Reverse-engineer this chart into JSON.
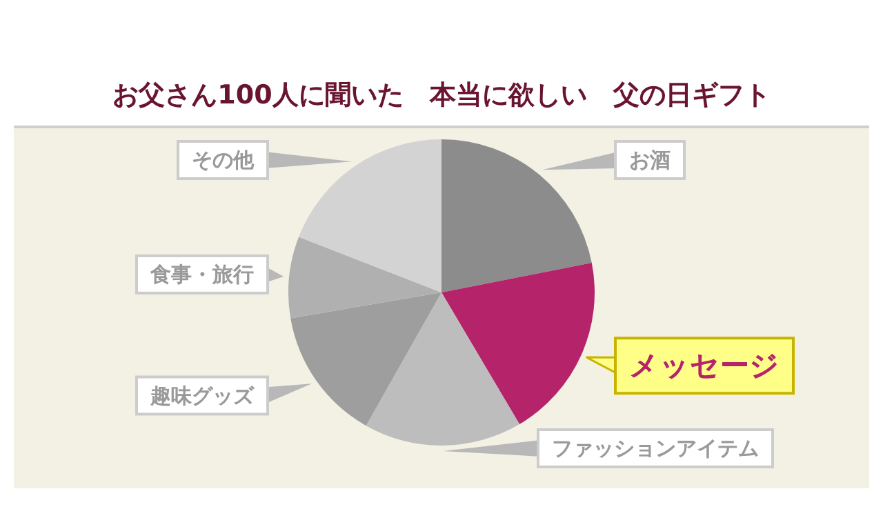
{
  "chart_data": {
    "type": "pie",
    "title": "お父さん100人に聞いた　本当に欲しい　父の日ギフト",
    "categories": [
      "お酒",
      "メッセージ",
      "ファッションアイテム",
      "趣味グッズ",
      "食事・旅行",
      "その他"
    ],
    "values": [
      21.9,
      19.6,
      16.7,
      14.1,
      8.6,
      19.1
    ],
    "colors": [
      "#8c8c8c",
      "#b5246a",
      "#bdbdbd",
      "#9e9e9e",
      "#b0b0b0",
      "#d3d3d3"
    ]
  }
}
